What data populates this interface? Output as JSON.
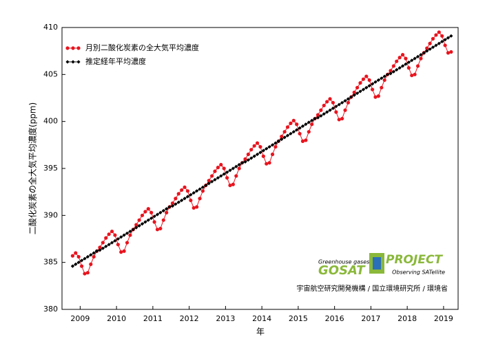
{
  "chart_data": {
    "type": "line",
    "y_label": "二酸化炭素の全大気平均濃度(ppm)",
    "x_label": "年",
    "xlim": [
      2009.0,
      2019.9
    ],
    "ylim": [
      380,
      410
    ],
    "yticks": [
      380,
      385,
      390,
      395,
      400,
      405,
      410
    ],
    "xticks": [
      {
        "value": 2009.5,
        "label": "2009"
      },
      {
        "value": 2010.5,
        "label": "2010"
      },
      {
        "value": 2011.5,
        "label": "2011"
      },
      {
        "value": 2012.5,
        "label": "2012"
      },
      {
        "value": 2013.5,
        "label": "2013"
      },
      {
        "value": 2014.5,
        "label": "2014"
      },
      {
        "value": 2015.5,
        "label": "2015"
      },
      {
        "value": 2016.5,
        "label": "2016"
      },
      {
        "value": 2017.5,
        "label": "2017"
      },
      {
        "value": 2018.5,
        "label": "2018"
      },
      {
        "value": 2019.5,
        "label": "2019"
      }
    ],
    "legend": "top-left",
    "x": [
      2009.292,
      2009.375,
      2009.458,
      2009.542,
      2009.625,
      2009.708,
      2009.792,
      2009.875,
      2009.958,
      2010.042,
      2010.125,
      2010.208,
      2010.292,
      2010.375,
      2010.458,
      2010.542,
      2010.625,
      2010.708,
      2010.792,
      2010.875,
      2010.958,
      2011.042,
      2011.125,
      2011.208,
      2011.292,
      2011.375,
      2011.458,
      2011.542,
      2011.625,
      2011.708,
      2011.792,
      2011.875,
      2011.958,
      2012.042,
      2012.125,
      2012.208,
      2012.292,
      2012.375,
      2012.458,
      2012.542,
      2012.625,
      2012.708,
      2012.792,
      2012.875,
      2012.958,
      2013.042,
      2013.125,
      2013.208,
      2013.292,
      2013.375,
      2013.458,
      2013.542,
      2013.625,
      2013.708,
      2013.792,
      2013.875,
      2013.958,
      2014.042,
      2014.125,
      2014.208,
      2014.292,
      2014.375,
      2014.458,
      2014.542,
      2014.625,
      2014.708,
      2014.792,
      2014.875,
      2014.958,
      2015.042,
      2015.125,
      2015.208,
      2015.292,
      2015.375,
      2015.458,
      2015.542,
      2015.625,
      2015.708,
      2015.792,
      2015.875,
      2015.958,
      2016.042,
      2016.125,
      2016.208,
      2016.292,
      2016.375,
      2016.458,
      2016.542,
      2016.625,
      2016.708,
      2016.792,
      2016.875,
      2016.958,
      2017.042,
      2017.125,
      2017.208,
      2017.292,
      2017.375,
      2017.458,
      2017.542,
      2017.625,
      2017.708,
      2017.792,
      2017.875,
      2017.958,
      2018.042,
      2018.125,
      2018.208,
      2018.292,
      2018.375,
      2018.458,
      2018.542,
      2018.625,
      2018.708,
      2018.792,
      2018.875,
      2018.958,
      2019.042,
      2019.125,
      2019.208,
      2019.292,
      2019.375,
      2019.458,
      2019.542,
      2019.625,
      2019.708
    ],
    "series": [
      {
        "name": "月別二酸化炭素の全大気平均濃度",
        "color": "#e8141e",
        "marker": "circle",
        "values": [
          385.7,
          386.0,
          385.6,
          384.6,
          383.8,
          383.9,
          384.8,
          385.6,
          386.2,
          386.6,
          387.1,
          387.6,
          388.0,
          388.3,
          387.9,
          386.9,
          386.1,
          386.2,
          387.1,
          387.9,
          388.5,
          389.0,
          389.5,
          390.0,
          390.4,
          390.7,
          390.3,
          389.3,
          388.5,
          388.6,
          389.5,
          390.3,
          390.9,
          391.3,
          391.8,
          392.3,
          392.7,
          393.0,
          392.6,
          391.6,
          390.8,
          390.9,
          391.8,
          392.6,
          393.2,
          393.7,
          394.2,
          394.7,
          395.1,
          395.4,
          395.0,
          394.0,
          393.2,
          393.3,
          394.2,
          395.0,
          395.6,
          396.0,
          396.5,
          397.0,
          397.4,
          397.7,
          397.3,
          396.3,
          395.5,
          395.6,
          396.5,
          397.3,
          397.9,
          398.4,
          398.9,
          399.4,
          399.8,
          400.1,
          399.7,
          398.7,
          397.9,
          398.0,
          398.9,
          399.7,
          400.3,
          400.7,
          401.2,
          401.7,
          402.1,
          402.4,
          402.0,
          401.0,
          400.2,
          400.3,
          401.2,
          402.0,
          402.6,
          403.1,
          403.6,
          404.1,
          404.5,
          404.8,
          404.4,
          403.4,
          402.6,
          402.7,
          403.6,
          404.4,
          405.0,
          405.4,
          405.9,
          406.4,
          406.8,
          407.1,
          406.7,
          405.7,
          404.9,
          405.0,
          405.9,
          406.7,
          407.3,
          407.8,
          408.3,
          408.8,
          409.2,
          409.5,
          409.1,
          408.1,
          407.3,
          407.4
        ]
      },
      {
        "name": "推定経年平均濃度",
        "color": "#000000",
        "marker": "diamond",
        "values": [
          384.6,
          384.8,
          385.0,
          385.2,
          385.4,
          385.6,
          385.8,
          386.0,
          386.2,
          386.3,
          386.5,
          386.7,
          386.9,
          387.1,
          387.3,
          387.5,
          387.7,
          387.9,
          388.1,
          388.3,
          388.5,
          388.7,
          388.9,
          389.1,
          389.3,
          389.5,
          389.7,
          389.9,
          390.1,
          390.3,
          390.5,
          390.7,
          390.9,
          391.0,
          391.2,
          391.4,
          391.6,
          391.8,
          392.0,
          392.2,
          392.4,
          392.6,
          392.8,
          393.0,
          393.2,
          393.4,
          393.6,
          393.8,
          394.0,
          394.2,
          394.4,
          394.6,
          394.8,
          395.0,
          395.2,
          395.4,
          395.6,
          395.7,
          395.9,
          396.1,
          396.3,
          396.5,
          396.7,
          396.9,
          397.1,
          397.3,
          397.5,
          397.7,
          397.9,
          398.1,
          398.3,
          398.5,
          398.7,
          398.9,
          399.1,
          399.3,
          399.5,
          399.7,
          399.9,
          400.1,
          400.3,
          400.4,
          400.6,
          400.8,
          401.0,
          401.2,
          401.4,
          401.6,
          401.8,
          402.0,
          402.2,
          402.4,
          402.6,
          402.8,
          403.0,
          403.2,
          403.4,
          403.6,
          403.8,
          404.0,
          404.2,
          404.4,
          404.6,
          404.8,
          405.0,
          405.1,
          405.3,
          405.5,
          405.7,
          405.9,
          406.1,
          406.3,
          406.5,
          406.7,
          406.9,
          407.1,
          407.3,
          407.5,
          407.7,
          407.9,
          408.1,
          408.3,
          408.5,
          408.7,
          408.9,
          409.1
        ]
      }
    ],
    "logo": {
      "tagline": "Greenhouse gases",
      "name": "GOSAT",
      "project": "PROJECT",
      "subtitle": "Observing SATellite"
    },
    "credit": "宇宙航空研究開発機構 / 国立環境研究所 / 環境省"
  }
}
